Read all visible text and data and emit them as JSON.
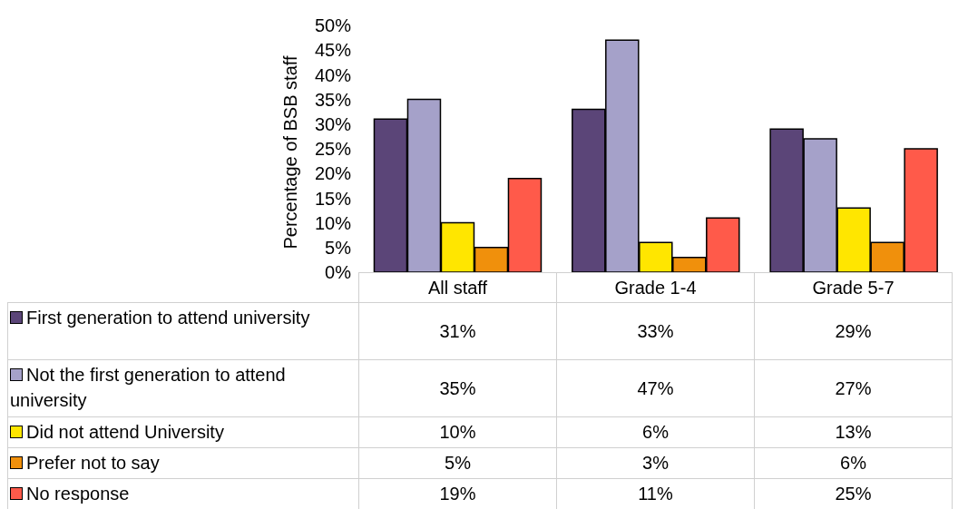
{
  "chart_data": {
    "type": "bar",
    "ylabel": "Percentage of BSB staff",
    "categories": [
      "All staff",
      "Grade 1-4",
      "Grade 5-7"
    ],
    "series": [
      {
        "name": "First generation to attend university",
        "color": "#5b4578",
        "values": [
          31,
          33,
          29
        ],
        "value_labels": [
          "31%",
          "33%",
          "29%"
        ]
      },
      {
        "name": "Not the first generation to attend university",
        "color": "#a5a1c9",
        "values": [
          35,
          47,
          27
        ],
        "value_labels": [
          "35%",
          "47%",
          "27%"
        ]
      },
      {
        "name": "Did not attend University",
        "color": "#ffe600",
        "values": [
          10,
          6,
          13
        ],
        "value_labels": [
          "10%",
          "6%",
          "13%"
        ]
      },
      {
        "name": "Prefer not to say",
        "color": "#f0900c",
        "values": [
          5,
          3,
          6
        ],
        "value_labels": [
          "5%",
          "3%",
          "6%"
        ]
      },
      {
        "name": "No response",
        "color": "#ff5a4a",
        "values": [
          19,
          11,
          25
        ],
        "value_labels": [
          "19%",
          "11%",
          "25%"
        ]
      }
    ],
    "ylim": [
      0,
      50
    ],
    "yticks": [
      {
        "value": 0,
        "label": "0%"
      },
      {
        "value": 5,
        "label": "5%"
      },
      {
        "value": 10,
        "label": "10%"
      },
      {
        "value": 15,
        "label": "15%"
      },
      {
        "value": 20,
        "label": "20%"
      },
      {
        "value": 25,
        "label": "25%"
      },
      {
        "value": 30,
        "label": "30%"
      },
      {
        "value": 35,
        "label": "35%"
      },
      {
        "value": 40,
        "label": "40%"
      },
      {
        "value": 45,
        "label": "45%"
      },
      {
        "value": 50,
        "label": "50%"
      }
    ],
    "grid": false,
    "legend": "bottom left"
  }
}
